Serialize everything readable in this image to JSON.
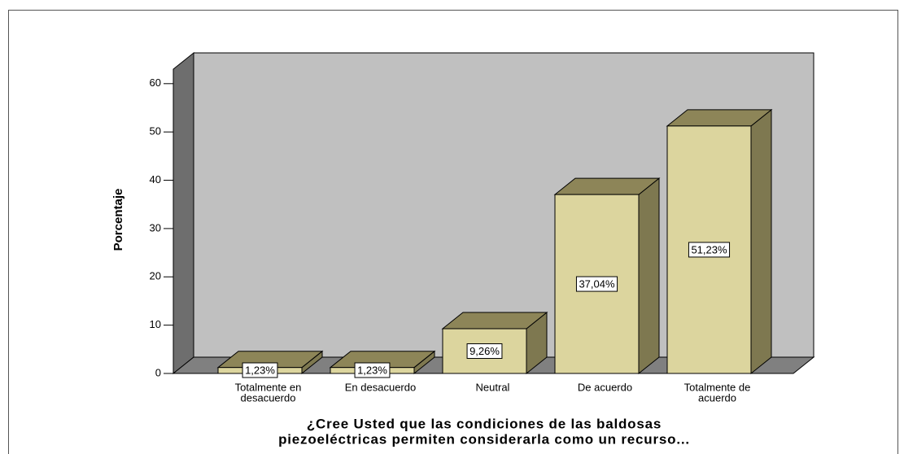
{
  "chart_data": {
    "type": "bar3d",
    "y_label": "Porcentaje",
    "x_label": [
      "¿Cree Usted que las condiciones de las baldosas",
      "piezoeléctricas permiten considerarla como un recurso..."
    ],
    "categories": [
      [
        "Totalmente en",
        "desacuerdo"
      ],
      [
        "En desacuerdo"
      ],
      [
        "Neutral"
      ],
      [
        "De acuerdo"
      ],
      [
        "Totalmente de",
        "acuerdo"
      ]
    ],
    "values": [
      1.23,
      1.23,
      9.26,
      37.04,
      51.23
    ],
    "value_labels": [
      "1,23%",
      "1,23%",
      "9,26%",
      "37,04%",
      "51,23%"
    ],
    "color": "#dcd59e",
    "ylim": [
      0,
      63
    ],
    "yticks": [
      0,
      10,
      20,
      30,
      40,
      50,
      60
    ],
    "grid": false
  }
}
